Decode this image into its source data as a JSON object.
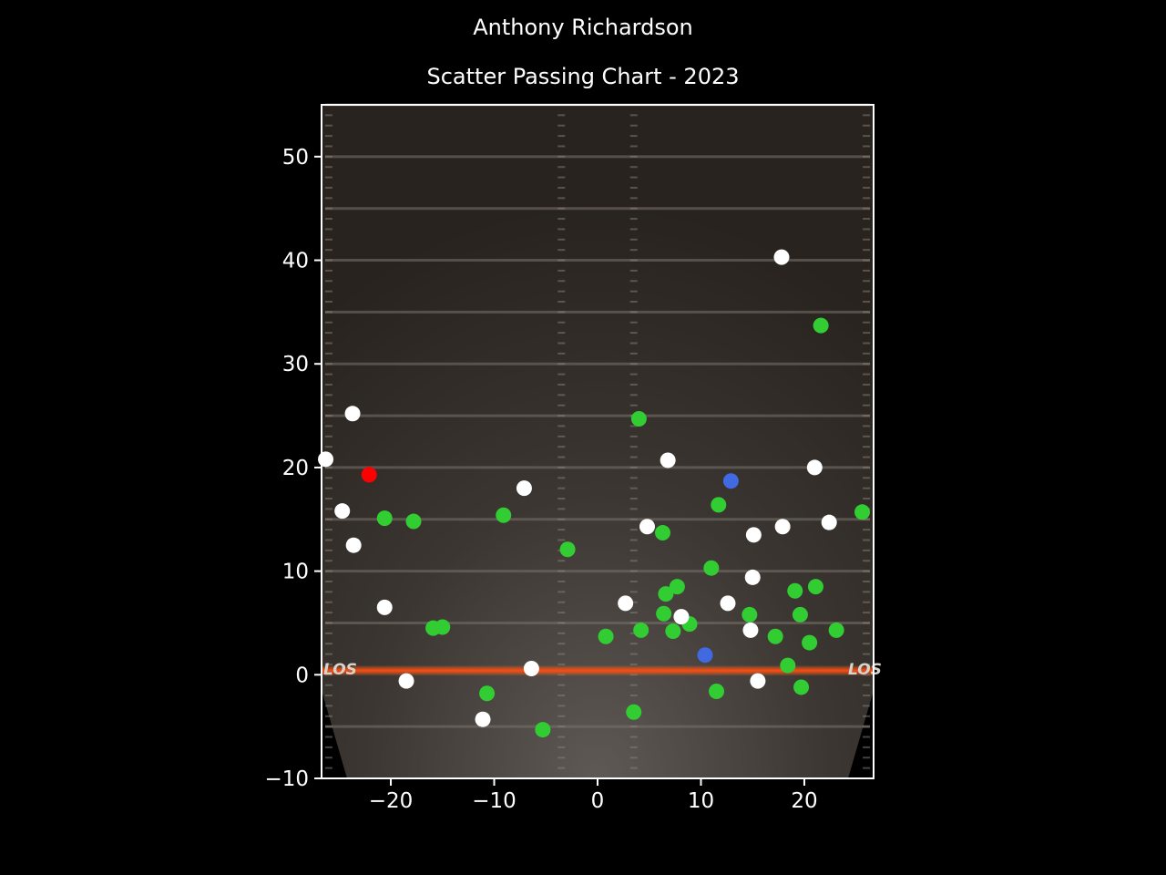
{
  "chart_data": {
    "type": "scatter",
    "title": "Anthony Richardson",
    "subtitle": "Scatter Passing Chart - 2023",
    "xlabel": "",
    "ylabel": "",
    "xlim": [
      -26.7,
      26.7
    ],
    "ylim": [
      -10,
      55
    ],
    "x_ticks": [
      -20,
      -10,
      0,
      10,
      20
    ],
    "y_ticks": [
      -10,
      0,
      10,
      20,
      30,
      40,
      50
    ],
    "x_tick_labels": [
      "−20",
      "−10",
      "0",
      "10",
      "20"
    ],
    "y_tick_labels": [
      "−10",
      "0",
      "10",
      "20",
      "30",
      "40",
      "50"
    ],
    "grid": false,
    "legend": "none",
    "field_text": [
      "LOS",
      "LOS"
    ],
    "colors": {
      "complete": "#32cd32",
      "incomplete": "#ffffff",
      "touchdown": "#4169e1",
      "interception": "#ff0000"
    },
    "series": [
      {
        "category": "complete",
        "x": [
          -20.6,
          -17.8,
          -15.9,
          -15.0,
          -10.7,
          -9.1,
          -5.3,
          -2.9,
          0.8,
          3.5,
          4.0,
          4.2,
          6.3,
          6.4,
          6.6,
          7.3,
          7.7,
          8.9,
          11.0,
          11.5,
          11.7,
          14.7,
          17.2,
          18.4,
          19.1,
          19.6,
          19.7,
          20.5,
          21.1,
          21.6,
          23.1,
          25.6
        ],
        "y": [
          15.1,
          14.8,
          4.5,
          4.6,
          -1.8,
          15.4,
          -5.3,
          12.1,
          3.7,
          -3.6,
          24.7,
          4.3,
          13.7,
          5.9,
          7.8,
          4.2,
          8.5,
          4.9,
          10.3,
          -1.6,
          16.4,
          5.8,
          3.7,
          0.9,
          8.1,
          5.8,
          -1.2,
          3.1,
          8.5,
          33.7,
          4.3,
          15.7
        ]
      },
      {
        "category": "incomplete",
        "x": [
          -26.3,
          -24.7,
          -23.7,
          -23.6,
          -20.6,
          -18.5,
          -11.1,
          -7.1,
          -6.4,
          2.7,
          4.8,
          6.8,
          8.1,
          12.6,
          14.8,
          15.0,
          15.1,
          15.5,
          17.8,
          17.9,
          21.0,
          22.4
        ],
        "y": [
          20.8,
          15.8,
          25.2,
          12.5,
          6.5,
          -0.6,
          -4.3,
          18.0,
          0.6,
          6.9,
          14.3,
          20.7,
          5.6,
          6.9,
          4.3,
          9.4,
          13.5,
          -0.6,
          40.3,
          14.3,
          20.0,
          14.7
        ]
      },
      {
        "category": "touchdown",
        "x": [
          10.4,
          12.9
        ],
        "y": [
          1.9,
          18.7
        ]
      },
      {
        "category": "interception",
        "x": [
          -22.1
        ],
        "y": [
          19.3
        ]
      }
    ]
  }
}
